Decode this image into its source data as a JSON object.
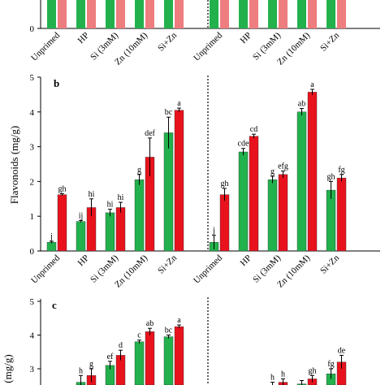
{
  "colors": {
    "green": "#22b14c",
    "red": "#e8121d",
    "red_light": "#ee7d80"
  },
  "chart_data": [
    {
      "panel": "a",
      "type": "bar",
      "partial": true,
      "categories": [
        "Unprimed",
        "HP",
        "Si (3mM)",
        "Zn (10mM)",
        "Si+Zn",
        "Unprimed",
        "HP",
        "Si (3mM)",
        "Zn (10mM)",
        "Si+Zn"
      ],
      "y_visible_tick": "0",
      "legend": "none"
    },
    {
      "panel": "b",
      "type": "bar",
      "panel_label": "b",
      "ylabel": "Flavonoids (mg/g)",
      "ylim": [
        0,
        5
      ],
      "yticks": [
        "0",
        "1",
        "2",
        "3",
        "4",
        "5"
      ],
      "categories": [
        "Unprimed",
        "HP",
        "Si (3mM)",
        "Zn (10mM)",
        "Si+Zn",
        "Unprimed",
        "HP",
        "Si (3mM)",
        "Zn (10mM)",
        "Si+Zn"
      ],
      "series": [
        {
          "color": "green",
          "values": [
            0.25,
            0.85,
            1.1,
            2.05,
            3.4,
            0.25,
            2.85,
            2.05,
            4.0,
            1.75
          ],
          "errors": [
            0.03,
            0.03,
            0.1,
            0.15,
            0.45,
            0.2,
            0.1,
            0.1,
            0.1,
            0.25
          ]
        },
        {
          "color": "red",
          "values": [
            1.62,
            1.25,
            1.25,
            2.7,
            4.05,
            1.62,
            3.3,
            2.2,
            4.57,
            2.1
          ],
          "errors": [
            0.03,
            0.25,
            0.15,
            0.55,
            0.06,
            0.18,
            0.06,
            0.1,
            0.08,
            0.1
          ]
        }
      ],
      "letters": [
        [
          "j",
          "gh"
        ],
        [
          "ij",
          "hi"
        ],
        [
          "hi",
          "hi"
        ],
        [
          "g",
          "def"
        ],
        [
          "bc",
          "a"
        ],
        [
          "j",
          "gh"
        ],
        [
          "cde",
          "cd"
        ],
        [
          "g",
          "efg"
        ],
        [
          "ab",
          "a"
        ],
        [
          "gh",
          "fg"
        ]
      ],
      "divider": "dotted line between the two groups of five"
    },
    {
      "panel": "c",
      "type": "bar",
      "panel_label": "c",
      "partial": true,
      "ylabel_visible": "(mg/g)",
      "yticks": [
        "3",
        "4",
        "5"
      ],
      "series": [
        {
          "color": "green",
          "values": [
            2.6,
            3.1,
            3.8,
            3.95,
            2.5,
            2.55,
            2.85
          ],
          "errors": [
            0.2,
            0.12,
            0.05,
            0.05,
            0.1,
            0.1,
            0.15
          ]
        },
        {
          "color": "red",
          "values": [
            2.8,
            3.4,
            4.1,
            4.25,
            2.6,
            2.7,
            3.2
          ],
          "errors": [
            0.2,
            0.15,
            0.1,
            0.05,
            0.1,
            0.1,
            0.2
          ]
        }
      ],
      "letters": [
        [
          "h",
          "g"
        ],
        [
          "ef",
          "d"
        ],
        [
          "c",
          "ab"
        ],
        [
          "bc",
          "a"
        ],
        [
          "h",
          "h"
        ],
        [
          "",
          "gh"
        ],
        [
          "fg",
          "de"
        ]
      ],
      "divider": "dotted line between the two groups"
    }
  ]
}
